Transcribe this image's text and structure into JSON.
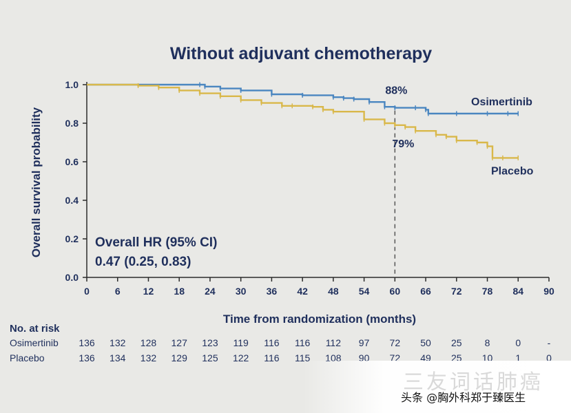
{
  "chart_data": {
    "type": "line",
    "title": "Without adjuvant chemotherapy",
    "xlabel": "Time from randomization (months)",
    "ylabel": "Overall survival probability",
    "xlim": [
      0,
      90
    ],
    "ylim": [
      0.0,
      1.0
    ],
    "x_ticks": [
      "0",
      "6",
      "12",
      "18",
      "24",
      "30",
      "36",
      "42",
      "48",
      "54",
      "60",
      "66",
      "72",
      "78",
      "84",
      "90"
    ],
    "y_ticks": [
      "0.0",
      "0.2",
      "0.4",
      "0.6",
      "0.8",
      "1.0"
    ],
    "series": [
      {
        "name": "Osimertinib",
        "color": "#4a86c0",
        "x": [
          0,
          22,
          23,
          26,
          30,
          36,
          42,
          48,
          50,
          52,
          55,
          58,
          60,
          64,
          66,
          66.5,
          72,
          78,
          82,
          84
        ],
        "y": [
          1.0,
          1.0,
          0.99,
          0.98,
          0.97,
          0.95,
          0.945,
          0.935,
          0.93,
          0.925,
          0.91,
          0.885,
          0.88,
          0.88,
          0.87,
          0.85,
          0.85,
          0.85,
          0.85,
          0.85
        ]
      },
      {
        "name": "Placebo",
        "color": "#d9b84a",
        "x": [
          0,
          10,
          14,
          18,
          22,
          26,
          30,
          34,
          38,
          40,
          44,
          46,
          48,
          54,
          58,
          60,
          62,
          64,
          68,
          70,
          72,
          76,
          78,
          79,
          81,
          84
        ],
        "y": [
          1.0,
          0.995,
          0.985,
          0.97,
          0.955,
          0.94,
          0.92,
          0.905,
          0.89,
          0.89,
          0.885,
          0.87,
          0.86,
          0.82,
          0.8,
          0.79,
          0.78,
          0.76,
          0.74,
          0.73,
          0.71,
          0.7,
          0.68,
          0.62,
          0.62,
          0.62
        ]
      }
    ],
    "annotations": [
      {
        "text": "88%",
        "x": 60,
        "y": 0.88,
        "series": "Osimertinib"
      },
      {
        "text": "79%",
        "x": 60,
        "y": 0.79,
        "series": "Placebo"
      }
    ],
    "reference_line_x": 60,
    "hr_line1": "Overall HR (95% CI)",
    "hr_line2": "0.47 (0.25, 0.83)",
    "risk_table": {
      "heading": "No. at risk",
      "rows": [
        {
          "name": "Osimertinib",
          "values": [
            "136",
            "132",
            "128",
            "127",
            "123",
            "119",
            "116",
            "116",
            "112",
            "97",
            "72",
            "50",
            "25",
            "8",
            "0",
            "-"
          ]
        },
        {
          "name": "Placebo",
          "values": [
            "136",
            "134",
            "132",
            "129",
            "125",
            "122",
            "116",
            "115",
            "108",
            "90",
            "72",
            "49",
            "25",
            "10",
            "1",
            "0"
          ]
        }
      ]
    }
  },
  "watermark": {
    "faint_text": "三友词话肺癌",
    "text": "头条 @胸外科郑于臻医生"
  }
}
